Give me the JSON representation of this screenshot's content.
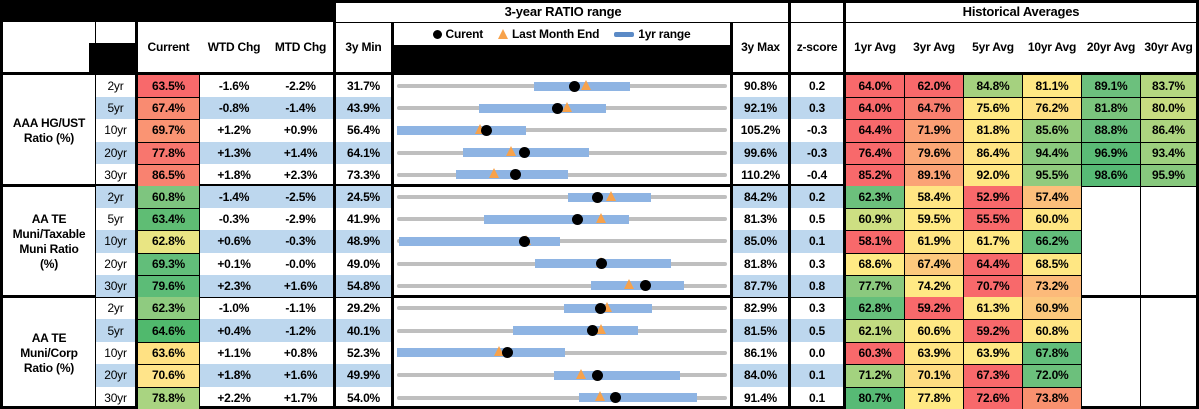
{
  "header": {
    "range_title": "3-year RATIO range",
    "averages_title": "Historical Averages",
    "col_current": "Current",
    "col_wtd": "WTD Chg",
    "col_mtd": "MTD Chg",
    "col_min": "3y Min",
    "col_max": "3y Max",
    "col_z": "z-score",
    "avg_cols": [
      "1yr Avg",
      "3yr Avg",
      "5yr Avg",
      "10yr Avg",
      "20yr Avg",
      "30yr Avg"
    ],
    "legend": {
      "current": "Curent",
      "last_month": "Last Month End",
      "range": "1yr range"
    }
  },
  "colors": {
    "stripe": "#BDD7EE",
    "track": "#BFBFBF",
    "bar": "#8EB4E3",
    "dot": "#000000",
    "triangle": "#F7A24B",
    "legend_dash": "#5B8AC6"
  },
  "chart_data": {
    "type": "table",
    "groups": [
      {
        "label": "AAA HG/UST\nRatio (%)",
        "rows": [
          {
            "tenor": "2yr",
            "current": "63.5%",
            "current_bg": "#F8696B",
            "wtd": "-1.6%",
            "mtd": "-2.2%",
            "min": "31.7%",
            "max": "90.8%",
            "z": "0.2",
            "striped": false,
            "yr1": [
              56.3,
              73.5
            ],
            "avgs": [
              {
                "v": "64.0%",
                "bg": "#F8696B"
              },
              {
                "v": "62.0%",
                "bg": "#F8696B"
              },
              {
                "v": "84.8%",
                "bg": "#A5D17F"
              },
              {
                "v": "81.1%",
                "bg": "#FFE884"
              },
              {
                "v": "89.1%",
                "bg": "#6CC07D"
              },
              {
                "v": "83.7%",
                "bg": "#B5D780"
              }
            ]
          },
          {
            "tenor": "5yr",
            "current": "67.4%",
            "current_bg": "#F98B71",
            "wtd": "-0.8%",
            "mtd": "-1.4%",
            "min": "43.9%",
            "max": "92.1%",
            "z": "0.3",
            "striped": true,
            "yr1": [
              55.9,
              74.4
            ],
            "avgs": [
              {
                "v": "64.0%",
                "bg": "#F8696B"
              },
              {
                "v": "64.7%",
                "bg": "#F87E6F"
              },
              {
                "v": "75.6%",
                "bg": "#FFE883"
              },
              {
                "v": "76.2%",
                "bg": "#FFE082"
              },
              {
                "v": "81.8%",
                "bg": "#7BC47D"
              },
              {
                "v": "80.0%",
                "bg": "#C8DD81"
              }
            ]
          },
          {
            "tenor": "10yr",
            "current": "69.7%",
            "current_bg": "#FA9473",
            "wtd": "+1.2%",
            "mtd": "+0.9%",
            "min": "56.4%",
            "max": "105.2%",
            "z": "-0.3",
            "striped": false,
            "yr1": [
              56.4,
              75.4
            ],
            "avgs": [
              {
                "v": "64.4%",
                "bg": "#F8696B"
              },
              {
                "v": "71.9%",
                "bg": "#FB9F75"
              },
              {
                "v": "81.8%",
                "bg": "#FFE783"
              },
              {
                "v": "85.6%",
                "bg": "#95CD7E"
              },
              {
                "v": "88.8%",
                "bg": "#68BF7C"
              },
              {
                "v": "86.4%",
                "bg": "#ACD47F"
              }
            ]
          },
          {
            "tenor": "20yr",
            "current": "77.8%",
            "current_bg": "#F8766E",
            "wtd": "+1.3%",
            "mtd": "+1.4%",
            "min": "64.1%",
            "max": "99.6%",
            "z": "-0.3",
            "striped": true,
            "yr1": [
              71.2,
              84.8
            ],
            "avgs": [
              {
                "v": "76.4%",
                "bg": "#F8696B"
              },
              {
                "v": "79.6%",
                "bg": "#FBA776"
              },
              {
                "v": "86.4%",
                "bg": "#FFE483"
              },
              {
                "v": "94.4%",
                "bg": "#8AC97E"
              },
              {
                "v": "96.9%",
                "bg": "#5ABB76"
              },
              {
                "v": "93.4%",
                "bg": "#9ED07F"
              }
            ]
          },
          {
            "tenor": "30yr",
            "current": "86.5%",
            "current_bg": "#F98270",
            "wtd": "+1.8%",
            "mtd": "+2.3%",
            "min": "73.3%",
            "max": "110.2%",
            "z": "-0.4",
            "striped": false,
            "yr1": [
              79.9,
              92.4
            ],
            "avgs": [
              {
                "v": "85.2%",
                "bg": "#F8696B"
              },
              {
                "v": "89.1%",
                "bg": "#FBA376"
              },
              {
                "v": "92.0%",
                "bg": "#FFE683"
              },
              {
                "v": "95.5%",
                "bg": "#90CB7E"
              },
              {
                "v": "98.6%",
                "bg": "#57BA75"
              },
              {
                "v": "95.9%",
                "bg": "#87C87D"
              }
            ]
          }
        ]
      },
      {
        "label": "AA TE\nMuni/Taxable\nMuni Ratio\n(%)",
        "rows": [
          {
            "tenor": "2yr",
            "current": "60.8%",
            "current_bg": "#7EC57F",
            "wtd": "-1.4%",
            "mtd": "-2.5%",
            "min": "24.5%",
            "max": "84.2%",
            "z": "0.2",
            "striped": true,
            "yr1": [
              55.4,
              70.4
            ],
            "avgs": [
              {
                "v": "62.3%",
                "bg": "#6CC07C"
              },
              {
                "v": "58.4%",
                "bg": "#FFE583"
              },
              {
                "v": "52.9%",
                "bg": "#F8696B"
              },
              {
                "v": "57.4%",
                "bg": "#FCBF7B"
              }
            ]
          },
          {
            "tenor": "5yr",
            "current": "63.4%",
            "current_bg": "#5FBD74",
            "wtd": "-0.3%",
            "mtd": "-2.9%",
            "min": "41.9%",
            "max": "81.3%",
            "z": "0.5",
            "striped": false,
            "yr1": [
              52.3,
              69.6
            ],
            "avgs": [
              {
                "v": "60.9%",
                "bg": "#CDDF82"
              },
              {
                "v": "59.5%",
                "bg": "#FFE984"
              },
              {
                "v": "55.5%",
                "bg": "#F8696B"
              },
              {
                "v": "60.0%",
                "bg": "#FFE583"
              }
            ]
          },
          {
            "tenor": "10yr",
            "current": "62.8%",
            "current_bg": "#E9E583",
            "wtd": "+0.6%",
            "mtd": "-0.3%",
            "min": "48.9%",
            "max": "85.0%",
            "z": "0.1",
            "striped": true,
            "yr1": [
              49.1,
              66.7
            ],
            "avgs": [
              {
                "v": "58.1%",
                "bg": "#F8696B"
              },
              {
                "v": "61.9%",
                "bg": "#FFE583"
              },
              {
                "v": "61.7%",
                "bg": "#FFE884"
              },
              {
                "v": "66.2%",
                "bg": "#63BE7B"
              }
            ]
          },
          {
            "tenor": "20yr",
            "current": "69.3%",
            "current_bg": "#62BE7A",
            "wtd": "+0.1%",
            "mtd": "-0.0%",
            "min": "49.0%",
            "max": "81.8%",
            "z": "0.3",
            "striped": false,
            "yr1": [
              62.7,
              76.2
            ],
            "avgs": [
              {
                "v": "68.6%",
                "bg": "#FFEA84"
              },
              {
                "v": "67.4%",
                "bg": "#FDC97D"
              },
              {
                "v": "64.4%",
                "bg": "#F8696B"
              },
              {
                "v": "68.5%",
                "bg": "#FFE783"
              }
            ]
          },
          {
            "tenor": "30yr",
            "current": "79.6%",
            "current_bg": "#5CBC77",
            "wtd": "+2.3%",
            "mtd": "+1.6%",
            "min": "54.8%",
            "max": "87.7%",
            "z": "0.8",
            "striped": true,
            "yr1": [
              74.1,
              83.4
            ],
            "avgs": [
              {
                "v": "77.7%",
                "bg": "#8BC97E"
              },
              {
                "v": "74.2%",
                "bg": "#FFE984"
              },
              {
                "v": "70.7%",
                "bg": "#F8696B"
              },
              {
                "v": "73.2%",
                "bg": "#FCBA7A"
              }
            ]
          }
        ]
      },
      {
        "label": "AA TE\nMuni/Corp\nRatio (%)",
        "rows": [
          {
            "tenor": "2yr",
            "current": "62.3%",
            "current_bg": "#8FCB80",
            "wtd": "-1.0%",
            "mtd": "-1.1%",
            "min": "29.2%",
            "max": "82.9%",
            "z": "0.3",
            "striped": false,
            "yr1": [
              56.4,
              70.7
            ],
            "avgs": [
              {
                "v": "62.8%",
                "bg": "#66BF7B"
              },
              {
                "v": "59.2%",
                "bg": "#F8696B"
              },
              {
                "v": "61.3%",
                "bg": "#FFE884"
              },
              {
                "v": "60.9%",
                "bg": "#FCC87D"
              }
            ]
          },
          {
            "tenor": "5yr",
            "current": "64.6%",
            "current_bg": "#50B96D",
            "wtd": "+0.4%",
            "mtd": "-1.2%",
            "min": "40.1%",
            "max": "81.5%",
            "z": "0.5",
            "striped": true,
            "yr1": [
              54.7,
              70.4
            ],
            "avgs": [
              {
                "v": "62.1%",
                "bg": "#C1DB81"
              },
              {
                "v": "60.6%",
                "bg": "#FFE884"
              },
              {
                "v": "59.2%",
                "bg": "#F8696B"
              },
              {
                "v": "60.8%",
                "bg": "#FFE583"
              }
            ]
          },
          {
            "tenor": "10yr",
            "current": "63.6%",
            "current_bg": "#FFE183",
            "wtd": "+1.1%",
            "mtd": "+0.8%",
            "min": "52.3%",
            "max": "86.1%",
            "z": "0.0",
            "striped": false,
            "yr1": [
              52.3,
              69.5
            ],
            "avgs": [
              {
                "v": "60.3%",
                "bg": "#F8696B"
              },
              {
                "v": "63.9%",
                "bg": "#FFE583"
              },
              {
                "v": "63.9%",
                "bg": "#FFE884"
              },
              {
                "v": "67.8%",
                "bg": "#63BE7B"
              }
            ]
          },
          {
            "tenor": "20yr",
            "current": "70.6%",
            "current_bg": "#FFE48A",
            "wtd": "+1.8%",
            "mtd": "+1.6%",
            "min": "49.9%",
            "max": "84.0%",
            "z": "0.1",
            "striped": true,
            "yr1": [
              66.1,
              79.1
            ],
            "avgs": [
              {
                "v": "71.2%",
                "bg": "#A3D27F"
              },
              {
                "v": "70.1%",
                "bg": "#FEDC81"
              },
              {
                "v": "67.3%",
                "bg": "#F8696B"
              },
              {
                "v": "72.0%",
                "bg": "#6CC07C"
              }
            ]
          },
          {
            "tenor": "30yr",
            "current": "78.8%",
            "current_bg": "#A9D481",
            "wtd": "+2.2%",
            "mtd": "+1.7%",
            "min": "54.0%",
            "max": "91.4%",
            "z": "0.1",
            "striped": false,
            "yr1": [
              74.6,
              88.0
            ],
            "avgs": [
              {
                "v": "80.7%",
                "bg": "#57BA75"
              },
              {
                "v": "77.8%",
                "bg": "#FFE984"
              },
              {
                "v": "72.6%",
                "bg": "#F8696B"
              },
              {
                "v": "73.8%",
                "bg": "#F9916F"
              }
            ]
          }
        ]
      }
    ]
  }
}
